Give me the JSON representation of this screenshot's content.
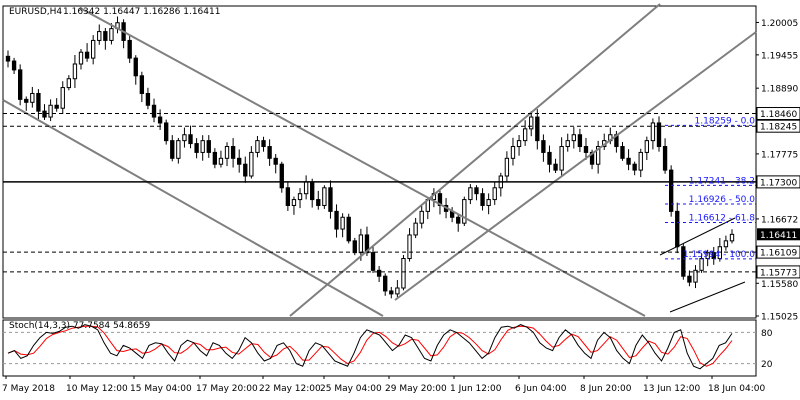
{
  "header": {
    "symbol": "EURUSD,H4",
    "ohlc": "1.16342 1.16447 1.16286 1.16411"
  },
  "stoch": {
    "label": "Stoch(14,3,3) 77.7584 54.8659",
    "levels": [
      80,
      20
    ],
    "k_color": "#000000",
    "d_color": "#ff0000"
  },
  "colors": {
    "bull": "#ffffff",
    "bear": "#000000",
    "trendline": "#7f7f7f",
    "fibo": "#1a1aff",
    "hline": "#000000"
  },
  "chart_data": {
    "type": "candlestick",
    "ylim": [
      1.15025,
      1.2025
    ],
    "y_ticks": [
      "1.20005",
      "1.19455",
      "1.18890",
      "1.17775",
      "1.16672",
      "1.15580",
      "1.15025"
    ],
    "x_ticks": [
      "7 May 2018",
      "10 May 12:00",
      "15 May 04:00",
      "17 May 20:00",
      "22 May 12:00",
      "25 May 04:00",
      "29 May 20:00",
      "1 Jun 12:00",
      "6 Jun 04:00",
      "8 Jun 20:00",
      "13 Jun 12:00",
      "18 Jun 04:00"
    ],
    "price_levels": [
      {
        "label": "1.18460",
        "value": 1.1846,
        "style": "dashed"
      },
      {
        "label": "1.18245",
        "value": 1.18245,
        "style": "dashed"
      },
      {
        "label": "1.17300",
        "value": 1.173,
        "style": "solid"
      },
      {
        "label": "1.16109",
        "value": 1.16109,
        "style": "dashed"
      },
      {
        "label": "1.15773",
        "value": 1.15773,
        "style": "dashed"
      }
    ],
    "current_price": {
      "label": "1.16411",
      "value": 1.16411
    },
    "fibonacci": [
      {
        "label": "1.18259 - 0.0",
        "value": 1.18259
      },
      {
        "label": "1.17241 - 38.2",
        "value": 1.17241
      },
      {
        "label": "1.16926 - 50.0",
        "value": 1.16926
      },
      {
        "label": "1.16612 - 61.8",
        "value": 1.16612
      },
      {
        "label": "1.15994 - 100.0",
        "value": 1.15994
      }
    ],
    "close_path": [
      1.1935,
      1.192,
      1.187,
      1.1865,
      1.188,
      1.185,
      1.184,
      1.186,
      1.1855,
      1.189,
      1.1905,
      1.193,
      1.195,
      1.194,
      1.197,
      1.1985,
      1.197,
      1.199,
      1.2,
      1.197,
      1.194,
      1.191,
      1.188,
      1.186,
      1.184,
      1.183,
      1.18,
      1.177,
      1.18,
      1.181,
      1.1795,
      1.178,
      1.18,
      1.178,
      1.176,
      1.177,
      1.179,
      1.177,
      1.176,
      1.174,
      1.178,
      1.18,
      1.179,
      1.177,
      1.176,
      1.172,
      1.169,
      1.17,
      1.171,
      1.173,
      1.17,
      1.169,
      1.172,
      1.168,
      1.165,
      1.167,
      1.163,
      1.161,
      1.164,
      1.161,
      1.158,
      1.157,
      1.1545,
      1.154,
      1.155,
      1.16,
      1.164,
      1.166,
      1.168,
      1.17,
      1.171,
      1.169,
      1.168,
      1.167,
      1.166,
      1.17,
      1.172,
      1.171,
      1.169,
      1.17,
      1.172,
      1.174,
      1.177,
      1.179,
      1.18,
      1.182,
      1.184,
      1.18,
      1.178,
      1.176,
      1.175,
      1.179,
      1.18,
      1.181,
      1.179,
      1.178,
      1.176,
      1.179,
      1.18,
      1.181,
      1.179,
      1.177,
      1.176,
      1.175,
      1.178,
      1.18,
      1.183,
      1.179,
      1.175,
      1.168,
      1.162,
      1.157,
      1.156,
      1.158,
      1.16,
      1.161,
      1.16,
      1.162,
      1.163,
      1.1641
    ],
    "stoch_k": [
      40,
      45,
      30,
      35,
      55,
      70,
      80,
      78,
      82,
      90,
      92,
      88,
      95,
      92,
      85,
      60,
      40,
      35,
      55,
      50,
      40,
      30,
      55,
      60,
      58,
      40,
      25,
      55,
      65,
      60,
      45,
      35,
      60,
      55,
      40,
      30,
      45,
      70,
      60,
      40,
      25,
      30,
      55,
      60,
      45,
      20,
      15,
      45,
      60,
      55,
      40,
      25,
      20,
      15,
      40,
      70,
      85,
      80,
      75,
      60,
      45,
      55,
      75,
      70,
      50,
      30,
      25,
      55,
      75,
      85,
      80,
      70,
      60,
      45,
      30,
      40,
      70,
      90,
      92,
      88,
      95,
      90,
      80,
      60,
      50,
      45,
      70,
      85,
      75,
      55,
      40,
      30,
      65,
      80,
      70,
      45,
      30,
      20,
      55,
      75,
      60,
      40,
      25,
      50,
      80,
      85,
      40,
      15,
      10,
      20,
      30,
      55,
      60,
      78
    ]
  }
}
